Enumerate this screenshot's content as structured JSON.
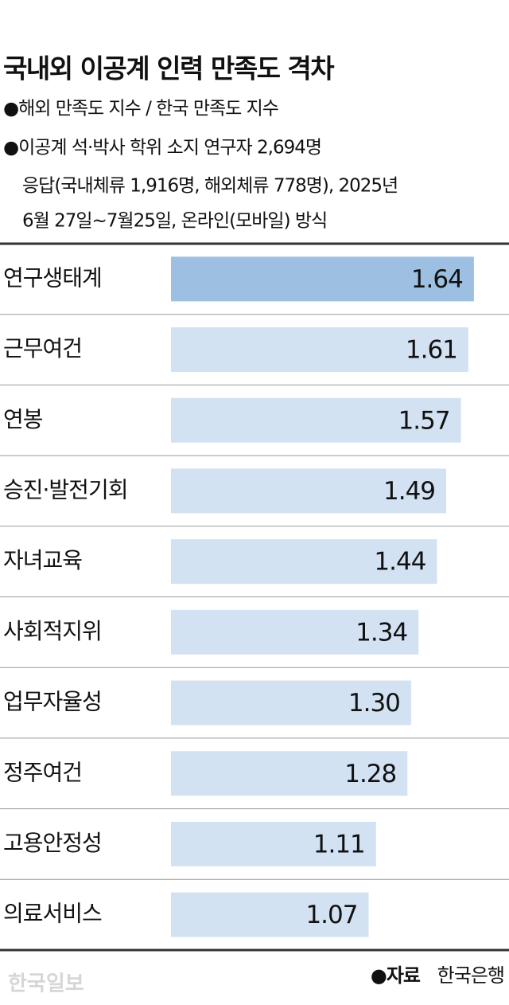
{
  "chart_data": {
    "type": "hbar",
    "title": "국내외 이공계 인력 만족도 격차",
    "subtitle": "●해외 만족도 지수 / 한국 만족도 지수",
    "notes": [
      "●이공계 석·박사 학위 소지 연구자 2,694명",
      "응답(국내체류 1,916명, 해외체류 778명), 2025년",
      "6월 27일~7월25일, 온라인(모바일) 방식"
    ],
    "categories": [
      "연구생태계",
      "근무여건",
      "연봉",
      "승진·발전기회",
      "자녀교육",
      "사회적지위",
      "업무자율성",
      "정주여건",
      "고용안정성",
      "의료서비스"
    ],
    "values": [
      1.64,
      1.61,
      1.57,
      1.49,
      1.44,
      1.34,
      1.3,
      1.28,
      1.11,
      1.07
    ],
    "value_labels": [
      "1.64",
      "1.61",
      "1.57",
      "1.49",
      "1.44",
      "1.34",
      "1.30",
      "1.28",
      "1.11",
      "1.07"
    ],
    "colors": [
      "#9dbfe2",
      "#d3e2f2",
      "#d3e2f2",
      "#d3e2f2",
      "#d3e2f2",
      "#d3e2f2",
      "#d3e2f2",
      "#d3e2f2",
      "#d3e2f2",
      "#d3e2f2"
    ],
    "xlim": [
      0,
      1.83
    ],
    "source": {
      "label": "●자료",
      "text": "한국은행"
    },
    "watermark": "한국일보"
  }
}
